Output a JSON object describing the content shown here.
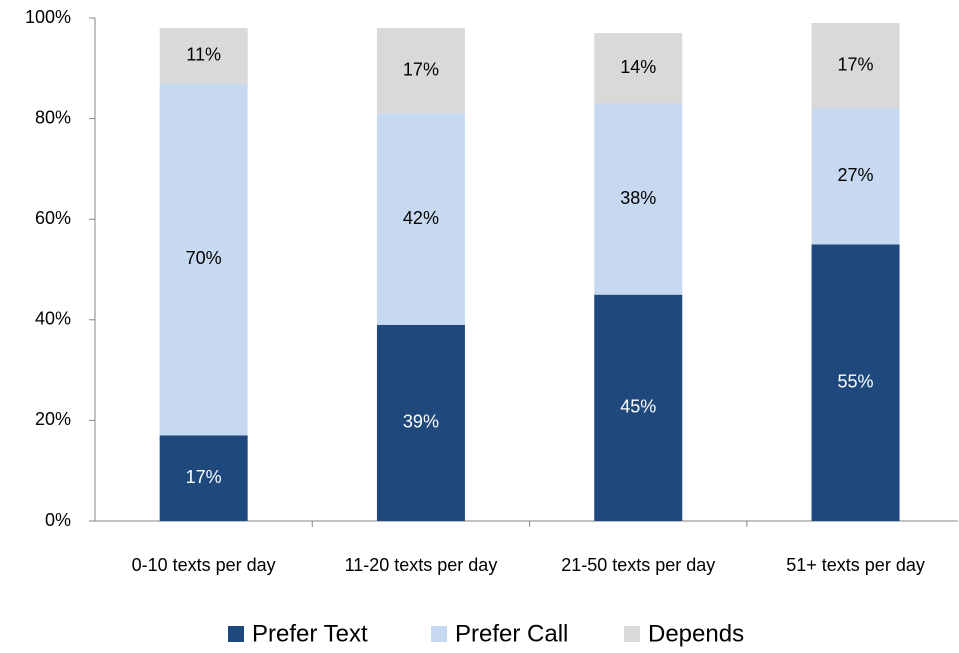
{
  "chart_data": {
    "type": "stacked_bar",
    "categories": [
      "0-10 texts per day",
      "11-20 texts per day",
      "21-50 texts per day",
      "51+ texts per day"
    ],
    "series": [
      {
        "name": "Prefer Text",
        "color": "#1f497d",
        "values": [
          17,
          39,
          45,
          55
        ],
        "value_labels": [
          "17%",
          "39%",
          "45%",
          "55%"
        ]
      },
      {
        "name": "Prefer Call",
        "color": "#c6d9f1",
        "values": [
          70,
          42,
          38,
          27
        ],
        "value_labels": [
          "70%",
          "42%",
          "38%",
          "27%"
        ]
      },
      {
        "name": "Depends",
        "color": "#d9d9d9",
        "values": [
          11,
          17,
          14,
          17
        ],
        "value_labels": [
          "11%",
          "17%",
          "14%",
          "17%"
        ]
      }
    ],
    "ylim": [
      0,
      100
    ],
    "yticks": [
      {
        "value": 0,
        "label": "0%"
      },
      {
        "value": 20,
        "label": "20%"
      },
      {
        "value": 40,
        "label": "40%"
      },
      {
        "value": 60,
        "label": "60%"
      },
      {
        "value": 80,
        "label": "80%"
      },
      {
        "value": 100,
        "label": "100%"
      }
    ],
    "legend": "bottom"
  }
}
